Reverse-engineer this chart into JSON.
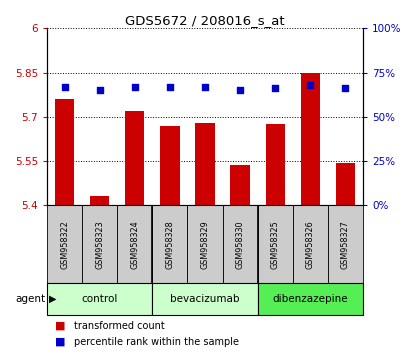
{
  "title": "GDS5672 / 208016_s_at",
  "samples": [
    "GSM958322",
    "GSM958323",
    "GSM958324",
    "GSM958328",
    "GSM958329",
    "GSM958330",
    "GSM958325",
    "GSM958326",
    "GSM958327"
  ],
  "bar_values": [
    5.76,
    5.43,
    5.72,
    5.67,
    5.68,
    5.535,
    5.675,
    5.85,
    5.545
  ],
  "percentile_values": [
    67,
    65,
    67,
    67,
    67,
    65,
    66,
    68,
    66
  ],
  "ylim": [
    5.4,
    6.0
  ],
  "yticks": [
    5.4,
    5.55,
    5.7,
    5.85,
    6.0
  ],
  "ytick_labels": [
    "5.4",
    "5.55",
    "5.7",
    "5.85",
    "6"
  ],
  "y2lim": [
    0,
    100
  ],
  "y2ticks": [
    0,
    25,
    50,
    75,
    100
  ],
  "y2labels": [
    "0%",
    "25%",
    "50%",
    "75%",
    "100%"
  ],
  "bar_color": "#cc0000",
  "dot_color": "#0000cc",
  "group_labels": [
    "control",
    "bevacizumab",
    "dibenzazepine"
  ],
  "group_colors": [
    "#ccffcc",
    "#ccffcc",
    "#55ee55"
  ],
  "group_boundaries": [
    0,
    3,
    6,
    9
  ],
  "legend_red": "transformed count",
  "legend_blue": "percentile rank within the sample",
  "agent_label": "agent",
  "left_tick_color": "#cc0000",
  "right_tick_color": "#0000cc",
  "bar_width": 0.55,
  "sample_box_color": "#cccccc"
}
